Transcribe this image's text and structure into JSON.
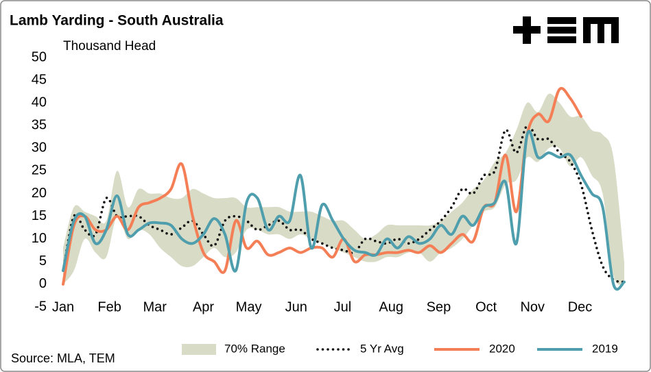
{
  "chart_data": {
    "type": "line",
    "title": "Lamb Yarding - South Australia",
    "subtitle": "Thousand Head",
    "source": "Source: MLA, TEM",
    "x": [
      0,
      1,
      2,
      3,
      4,
      5,
      6,
      7,
      8,
      9,
      10,
      11,
      12,
      13,
      14,
      15,
      16,
      17,
      18,
      19,
      20,
      21,
      22,
      23,
      24,
      25,
      26,
      27,
      28,
      29,
      30,
      31,
      32,
      33,
      34,
      35,
      36,
      37,
      38,
      39,
      40,
      41,
      42,
      43,
      44,
      45,
      46,
      47,
      48,
      49,
      50,
      51,
      52
    ],
    "xlim": [
      0,
      52
    ],
    "xticks": [
      {
        "value": 0,
        "label": "Jan"
      },
      {
        "value": 4.3,
        "label": "Feb"
      },
      {
        "value": 8.5,
        "label": "Mar"
      },
      {
        "value": 13,
        "label": "Apr"
      },
      {
        "value": 17.2,
        "label": "May"
      },
      {
        "value": 21.6,
        "label": "Jun"
      },
      {
        "value": 25.9,
        "label": "Jul"
      },
      {
        "value": 30.4,
        "label": "Aug"
      },
      {
        "value": 34.8,
        "label": "Sep"
      },
      {
        "value": 39.2,
        "label": "Oct"
      },
      {
        "value": 43.5,
        "label": "Nov"
      },
      {
        "value": 47.9,
        "label": "Dec"
      }
    ],
    "ylim": [
      -5,
      50
    ],
    "yticks": [
      -5,
      0,
      5,
      10,
      15,
      20,
      25,
      30,
      35,
      40,
      45,
      50
    ],
    "grid": false,
    "legend": "bottom",
    "series": [
      {
        "name": "70% Range",
        "type": "band",
        "color": "#d8dbc5",
        "low": [
          0,
          3,
          10,
          7,
          6,
          15,
          10,
          12,
          11,
          8,
          6,
          4,
          4,
          6,
          8,
          6,
          7,
          12,
          12,
          11,
          11,
          10,
          11,
          10,
          9,
          8,
          7,
          6,
          5,
          5,
          6,
          6,
          7,
          7,
          5,
          7,
          8,
          10,
          13,
          16,
          17,
          22,
          23,
          28,
          27,
          30,
          30,
          26,
          28,
          24,
          20,
          2,
          0
        ],
        "high": [
          8,
          17,
          16,
          15,
          14,
          25,
          17,
          21,
          20,
          20,
          19,
          19,
          21,
          20,
          19,
          19,
          19,
          17,
          17,
          17,
          17,
          16,
          16,
          16,
          15,
          14,
          14,
          12,
          10,
          11,
          13,
          13,
          13,
          13,
          13,
          14,
          16,
          18,
          21,
          23,
          27,
          29,
          34,
          40,
          38,
          42,
          40,
          37,
          37,
          34,
          33,
          28,
          5
        ]
      },
      {
        "name": "5 Yr Avg",
        "type": "dotted",
        "color": "#111111",
        "values": [
          3,
          15,
          12,
          11,
          19,
          15,
          15,
          15,
          13,
          12,
          11,
          12.5,
          14,
          11,
          8.5,
          14,
          15,
          14,
          12,
          13,
          14,
          12,
          12,
          10,
          9,
          8,
          7.5,
          7,
          10,
          9.5,
          9,
          10,
          9,
          10,
          12,
          14,
          17,
          21,
          20,
          24,
          25,
          34,
          29,
          35,
          32,
          32,
          29,
          27,
          22,
          12,
          4,
          1,
          0.5
        ]
      },
      {
        "name": "2020",
        "type": "line",
        "color": "#f47f56",
        "values": [
          0,
          13,
          15,
          12,
          12,
          15,
          12,
          17,
          18,
          19,
          21,
          26.5,
          15,
          7,
          5,
          3,
          14,
          8,
          9.5,
          6.5,
          7,
          8,
          7,
          8,
          8,
          6,
          10,
          5,
          6.5,
          6.5,
          7,
          7,
          7.5,
          7,
          8.5,
          7,
          9,
          11,
          9.5,
          17,
          18,
          28.5,
          16,
          33,
          37.5,
          36,
          43,
          41,
          37,
          null,
          null,
          null,
          null
        ]
      },
      {
        "name": "2019",
        "type": "line",
        "color": "#4f9ead",
        "values": [
          3,
          14,
          15,
          9,
          12,
          19.5,
          11,
          12,
          13.5,
          13.5,
          13,
          10,
          9,
          11,
          14.5,
          11,
          3,
          18,
          19,
          12,
          15,
          14,
          24,
          8,
          17.5,
          14,
          10,
          7.5,
          7,
          6.5,
          10,
          8,
          10.5,
          9,
          10,
          13,
          11,
          15,
          13,
          17,
          18,
          22.5,
          9,
          33,
          28,
          29,
          28,
          28.5,
          24,
          20,
          17,
          0,
          0.5
        ]
      }
    ]
  }
}
